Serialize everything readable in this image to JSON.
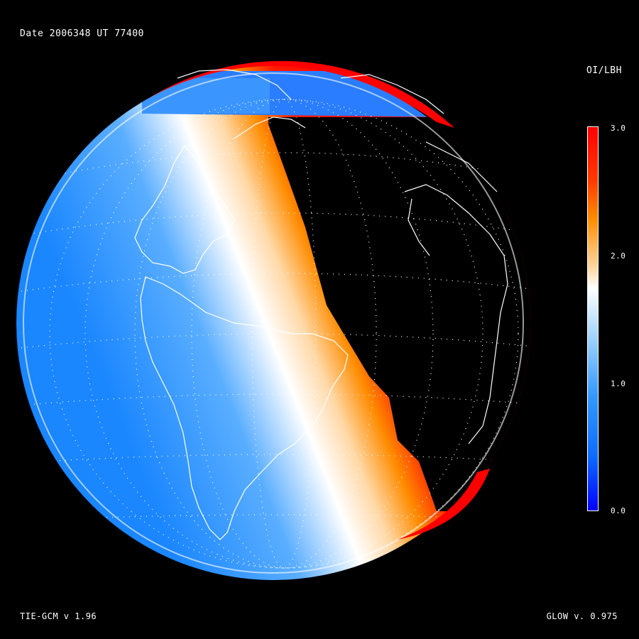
{
  "header": {
    "date_label": "Date 2006348   UT 77400"
  },
  "colorbar": {
    "title": "OI/LBH",
    "ticks": [
      "3.0",
      "2.0",
      "1.0",
      "0.0"
    ],
    "colors": {
      "high": "#ff0000",
      "mid_high": "#ff8c00",
      "mid": "#ffffff",
      "mid_low": "#3399ff",
      "low": "#0000ff"
    }
  },
  "footer": {
    "model": "TIE-GCM v 1.96",
    "glow": "GLOW v. 0.975"
  },
  "map": {
    "background": "#000000",
    "grid_color": "#ffffff",
    "coast_color": "#ffffff"
  }
}
